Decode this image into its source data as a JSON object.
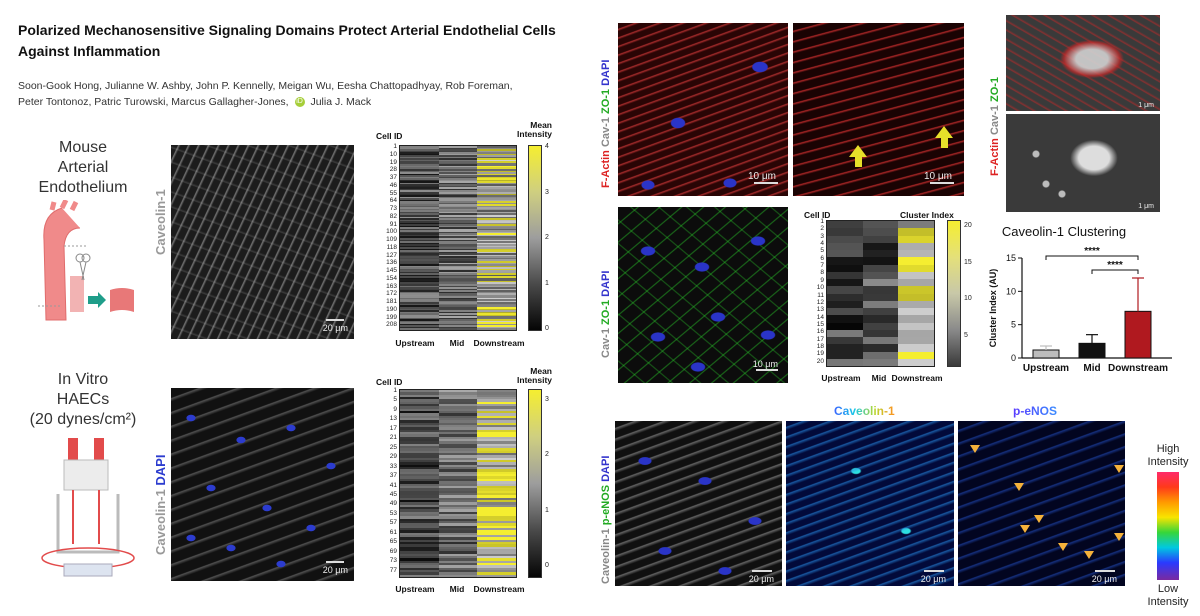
{
  "paper": {
    "title": "Polarized Mechanosensitive Signaling Domains Protect Arterial Endothelial Cells Against Inflammation",
    "authors_line1": "Soon-Gook Hong, Julianne W. Ashby, John P. Kennelly, Meigan Wu, Eesha Chattopadhyay, Rob Foreman,",
    "authors_line2": "Peter Tontonoz, Patric Turowski, Marcus Gallagher-Jones,",
    "authors_last": "Julia J. Mack"
  },
  "left": {
    "mouse_label": [
      "Mouse",
      "Arterial",
      "Endothelium"
    ],
    "invitro_label": [
      "In Vitro",
      "HAECs",
      "(20 dynes/cm²)"
    ],
    "caveolin_label": "Caveolin-1",
    "dapi_label": "DAPI",
    "scale_20um": "20 μm",
    "heat_top": {
      "cell_id_title": "Cell ID",
      "intensity_title": [
        "Mean",
        "Intensity"
      ],
      "ticks": [
        "1",
        "10",
        "19",
        "28",
        "37",
        "46",
        "55",
        "64",
        "73",
        "82",
        "91",
        "100",
        "109",
        "118",
        "127",
        "136",
        "145",
        "154",
        "163",
        "172",
        "181",
        "190",
        "199",
        "208"
      ],
      "columns": [
        "Upstream",
        "Mid",
        "Downstream"
      ],
      "cb_labels": [
        "4",
        "3",
        "2",
        "1",
        "0"
      ]
    },
    "heat_bottom": {
      "cell_id_title": "Cell ID",
      "intensity_title": [
        "Mean",
        "Intensity"
      ],
      "ticks": [
        "1",
        "5",
        "9",
        "13",
        "17",
        "21",
        "25",
        "29",
        "33",
        "37",
        "41",
        "45",
        "49",
        "53",
        "57",
        "61",
        "65",
        "69",
        "73",
        "77"
      ],
      "columns": [
        "Upstream",
        "Mid",
        "Downstream"
      ],
      "cb_labels": [
        "3",
        "2",
        "1",
        "0"
      ]
    }
  },
  "right": {
    "top_label": {
      "factin": "F-Actin",
      "cav": "Cav-1",
      "zo": "ZO-1",
      "dapi": "DAPI"
    },
    "side_label": {
      "factin": "F-Actin",
      "cav": "Cav-1",
      "zo": "ZO-1"
    },
    "scale_10um": "10 μm",
    "scale_1um": "1 μm",
    "mid_label": {
      "cav": "Cav-1",
      "zo": "ZO-1",
      "dapi": "DAPI"
    },
    "cluster_heat": {
      "cell_id_title": "Cell ID",
      "cluster_title": "Cluster Index",
      "ticks": [
        "1",
        "2",
        "3",
        "4",
        "5",
        "6",
        "7",
        "8",
        "9",
        "10",
        "11",
        "12",
        "13",
        "14",
        "15",
        "16",
        "17",
        "18",
        "19",
        "20"
      ],
      "columns": [
        "Upstream",
        "Mid",
        "Downstream"
      ],
      "cb_labels": [
        "20",
        "15",
        "10",
        "5"
      ]
    },
    "bottom_label": {
      "cav": "Caveolin-1",
      "penos": "p-eNOS",
      "dapi": "DAPI"
    },
    "bottom_titles": {
      "cav": "Caveolin-1",
      "penos": "p-eNOS"
    },
    "intensity_legend": {
      "high": [
        "High",
        "Intensity"
      ],
      "low": [
        "Low",
        "Intensity"
      ]
    }
  },
  "chart_data": {
    "type": "bar",
    "title": "Caveolin-1 Clustering",
    "ylabel": "Cluster Index (AU)",
    "categories": [
      "Upstream",
      "Mid",
      "Downstream"
    ],
    "values": [
      1.2,
      2.2,
      7.0
    ],
    "errors": [
      0.6,
      1.3,
      5.0
    ],
    "yticks": [
      "0",
      "5",
      "10",
      "15"
    ],
    "ylim": [
      0,
      15
    ],
    "significance": [
      "****",
      "****"
    ],
    "colors": [
      "#bdbdbd",
      "#111111",
      "#b0191f"
    ]
  }
}
